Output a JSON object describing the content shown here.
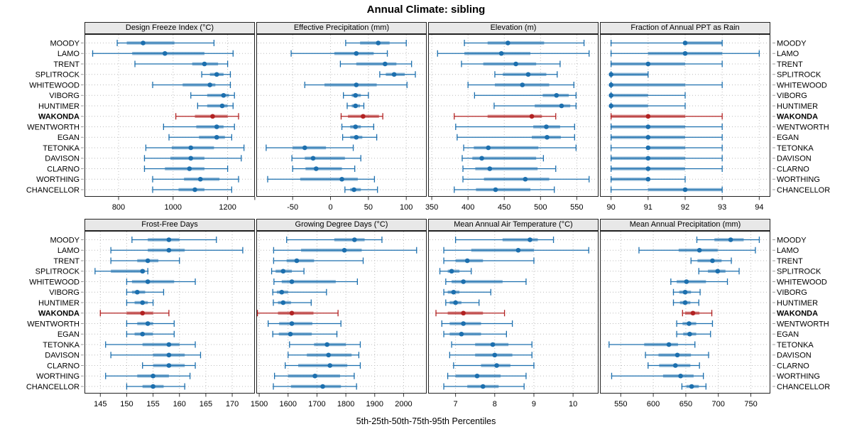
{
  "title": "Annual Climate: sibling",
  "footer": "5th-25th-50th-75th-95th Percentiles",
  "stations": [
    "MOODY",
    "LAMO",
    "TRENT",
    "SPLITROCK",
    "WHITEWOOD",
    "VIBORG",
    "HUNTIMER",
    "WAKONDA",
    "WENTWORTH",
    "EGAN",
    "TETONKA",
    "DAVISON",
    "CLARNO",
    "WORTHING",
    "CHANCELLOR"
  ],
  "highlight_station": "WAKONDA",
  "colors": {
    "series": "#1C6FAE",
    "highlight": "#B22222",
    "grid": "#bcbcbc",
    "panel_border": "#222222",
    "header_bg": "#e8e8e8",
    "tick": "#333333",
    "text": "#000000"
  },
  "chart_data": {
    "type": "dotplot",
    "layout": {
      "rows": 2,
      "cols": 4
    },
    "percentiles": [
      5,
      25,
      50,
      75,
      95
    ],
    "panels": [
      {
        "title": "Design Freeze Index (°C)",
        "xlim": [
          675,
          1300
        ],
        "ticks": [
          800,
          1000,
          1200
        ],
        "minor_ticks": [],
        "values": [
          [
            795,
            830,
            890,
            1005,
            1150
          ],
          [
            705,
            850,
            970,
            1115,
            1220
          ],
          [
            860,
            1070,
            1115,
            1165,
            1200
          ],
          [
            1105,
            1135,
            1160,
            1185,
            1210
          ],
          [
            925,
            1035,
            1135,
            1155,
            1210
          ],
          [
            1065,
            1125,
            1185,
            1205,
            1225
          ],
          [
            1090,
            1125,
            1180,
            1200,
            1220
          ],
          [
            1010,
            1080,
            1145,
            1200,
            1240
          ],
          [
            965,
            1085,
            1160,
            1185,
            1225
          ],
          [
            985,
            1095,
            1160,
            1190,
            1215
          ],
          [
            900,
            995,
            1065,
            1150,
            1260
          ],
          [
            895,
            990,
            1065,
            1115,
            1250
          ],
          [
            895,
            970,
            1060,
            1115,
            1200
          ],
          [
            925,
            1040,
            1100,
            1170,
            1240
          ],
          [
            925,
            1020,
            1080,
            1115,
            1215
          ]
        ]
      },
      {
        "title": "Effective Precipitation (mm)",
        "xlim": [
          -98,
          127
        ],
        "ticks": [
          -50,
          0,
          50,
          100
        ],
        "minor_ticks": [
          -100
        ],
        "values": [
          [
            20,
            39,
            63,
            78,
            100
          ],
          [
            -52,
            5,
            34,
            57,
            75
          ],
          [
            13,
            34,
            72,
            87,
            107
          ],
          [
            65,
            73,
            84,
            98,
            112
          ],
          [
            -34,
            -8,
            34,
            61,
            101
          ],
          [
            17,
            28,
            33,
            40,
            50
          ],
          [
            22,
            28,
            33,
            39,
            44
          ],
          [
            14,
            23,
            43,
            64,
            69
          ],
          [
            15,
            26,
            33,
            40,
            57
          ],
          [
            16,
            26,
            34,
            42,
            61
          ],
          [
            -85,
            -50,
            -34,
            -6,
            30
          ],
          [
            -51,
            -34,
            -23,
            19,
            40
          ],
          [
            -50,
            -33,
            -19,
            15,
            32
          ],
          [
            -83,
            -40,
            15,
            36,
            58
          ],
          [
            19,
            26,
            31,
            40,
            62
          ]
        ]
      },
      {
        "title": "Elevation (m)",
        "xlim": [
          345,
          580
        ],
        "ticks": [
          350,
          400,
          450,
          500,
          550
        ],
        "minor_ticks": [],
        "values": [
          [
            395,
            427,
            455,
            505,
            560
          ],
          [
            358,
            395,
            446,
            486,
            567
          ],
          [
            391,
            421,
            466,
            494,
            527
          ],
          [
            437,
            448,
            483,
            508,
            523
          ],
          [
            400,
            437,
            475,
            512,
            546
          ],
          [
            409,
            503,
            522,
            539,
            549
          ],
          [
            436,
            492,
            529,
            541,
            549
          ],
          [
            381,
            427,
            488,
            502,
            521
          ],
          [
            383,
            490,
            508,
            527,
            547
          ],
          [
            385,
            488,
            509,
            528,
            547
          ],
          [
            394,
            408,
            428,
            497,
            549
          ],
          [
            392,
            406,
            419,
            494,
            504
          ],
          [
            393,
            410,
            430,
            496,
            521
          ],
          [
            393,
            422,
            479,
            512,
            567
          ],
          [
            381,
            411,
            438,
            486,
            519
          ]
        ]
      },
      {
        "title": "Fraction of Annual PPT as Rain",
        "xlim": [
          89.7,
          94.3
        ],
        "ticks": [
          90,
          91,
          92,
          93,
          94
        ],
        "minor_ticks": [],
        "values": [
          [
            90,
            92,
            92,
            93,
            93
          ],
          [
            90,
            91,
            92,
            93,
            94
          ],
          [
            90,
            90,
            91,
            92,
            93
          ],
          [
            90,
            90,
            90,
            91,
            91
          ],
          [
            90,
            90,
            90,
            92,
            93
          ],
          [
            90,
            90,
            90,
            91,
            92
          ],
          [
            90,
            90,
            90,
            91,
            92
          ],
          [
            90,
            90,
            91,
            92,
            93
          ],
          [
            90,
            90,
            91,
            92,
            93
          ],
          [
            90,
            90,
            91,
            92,
            93
          ],
          [
            90,
            91,
            91,
            92,
            93
          ],
          [
            90,
            90,
            91,
            92,
            93
          ],
          [
            90,
            90,
            91,
            92,
            93
          ],
          [
            90,
            90,
            91,
            91,
            92
          ],
          [
            90,
            91,
            92,
            93,
            93
          ]
        ]
      },
      {
        "title": "Frost-Free Days",
        "xlim": [
          142,
          174.3
        ],
        "ticks": [
          145,
          150,
          155,
          160,
          165,
          170
        ],
        "minor_ticks": [],
        "values": [
          [
            151,
            154,
            158,
            160,
            167
          ],
          [
            147,
            154,
            158,
            161,
            172
          ],
          [
            147,
            152,
            154,
            156,
            160
          ],
          [
            144,
            147,
            153,
            153.5,
            154
          ],
          [
            150,
            151,
            154,
            159,
            163
          ],
          [
            150,
            151,
            152,
            153.5,
            157
          ],
          [
            150,
            151.5,
            153,
            154,
            155
          ],
          [
            145,
            150,
            153,
            155,
            158
          ],
          [
            150,
            152,
            154,
            155,
            159
          ],
          [
            150,
            151.5,
            153,
            155,
            159
          ],
          [
            146,
            153,
            158,
            160,
            163
          ],
          [
            147,
            155,
            158,
            161,
            164
          ],
          [
            153,
            155,
            158,
            161,
            163
          ],
          [
            146,
            152,
            155,
            158,
            162
          ],
          [
            150,
            153,
            155,
            157,
            161
          ]
        ]
      },
      {
        "title": "Growing Degree Days (°C)",
        "xlim": [
          1490,
          2080
        ],
        "ticks": [
          1500,
          1600,
          1700,
          1800,
          1900,
          2000
        ],
        "minor_ticks": [],
        "values": [
          [
            1595,
            1760,
            1830,
            1865,
            1925
          ],
          [
            1550,
            1645,
            1795,
            1855,
            2045
          ],
          [
            1550,
            1595,
            1630,
            1690,
            1860
          ],
          [
            1543,
            1557,
            1583,
            1613,
            1655
          ],
          [
            1551,
            1578,
            1613,
            1765,
            1840
          ],
          [
            1547,
            1561,
            1578,
            1600,
            1733
          ],
          [
            1549,
            1565,
            1583,
            1610,
            1680
          ],
          [
            1494,
            1565,
            1613,
            1688,
            1773
          ],
          [
            1531,
            1569,
            1613,
            1684,
            1783
          ],
          [
            1547,
            1568,
            1608,
            1682,
            1769
          ],
          [
            1605,
            1690,
            1735,
            1800,
            1850
          ],
          [
            1600,
            1665,
            1740,
            1820,
            1845
          ],
          [
            1590,
            1635,
            1745,
            1805,
            1850
          ],
          [
            1553,
            1600,
            1693,
            1780,
            1829
          ],
          [
            1549,
            1610,
            1720,
            1783,
            1837
          ]
        ]
      },
      {
        "title": "Mean Annual Air Temperature (°C)",
        "xlim": [
          6.3,
          10.65
        ],
        "ticks": [
          7,
          8,
          9,
          10
        ],
        "minor_ticks": [],
        "values": [
          [
            7.0,
            8.2,
            8.9,
            9.1,
            9.5
          ],
          [
            6.7,
            7.4,
            8.6,
            9.0,
            10.4
          ],
          [
            6.7,
            7.0,
            7.3,
            7.7,
            9.0
          ],
          [
            6.6,
            6.8,
            6.9,
            7.1,
            7.4
          ],
          [
            6.75,
            6.9,
            7.2,
            8.2,
            8.8
          ],
          [
            6.7,
            6.8,
            6.95,
            7.1,
            7.9
          ],
          [
            6.75,
            6.85,
            7.0,
            7.15,
            7.6
          ],
          [
            6.5,
            6.8,
            7.2,
            7.7,
            8.25
          ],
          [
            6.65,
            6.85,
            7.2,
            7.65,
            8.45
          ],
          [
            6.7,
            6.85,
            7.15,
            7.65,
            8.3
          ],
          [
            6.9,
            7.5,
            7.95,
            8.35,
            8.95
          ],
          [
            6.85,
            7.5,
            8.0,
            8.45,
            8.95
          ],
          [
            6.95,
            7.65,
            8.05,
            8.4,
            9.0
          ],
          [
            6.8,
            7.0,
            7.55,
            8.15,
            8.8
          ],
          [
            6.7,
            7.3,
            7.7,
            8.1,
            8.75
          ]
        ]
      },
      {
        "title": "Mean Annual Precipitation (mm)",
        "xlim": [
          518,
          780
        ],
        "ticks": [
          550,
          600,
          650,
          700,
          750
        ],
        "minor_ticks": [],
        "values": [
          [
            667,
            694,
            719,
            739,
            763
          ],
          [
            578,
            639,
            671,
            699,
            757
          ],
          [
            658,
            668,
            691,
            705,
            720
          ],
          [
            670,
            684,
            699,
            711,
            732
          ],
          [
            627,
            636,
            651,
            681,
            714
          ],
          [
            631,
            640,
            649,
            658,
            672
          ],
          [
            631,
            641,
            649,
            657,
            670
          ],
          [
            645,
            649,
            661,
            671,
            690
          ],
          [
            636,
            645,
            655,
            666,
            691
          ],
          [
            636,
            646,
            656,
            666,
            688
          ],
          [
            532,
            586,
            624,
            638,
            664
          ],
          [
            588,
            608,
            637,
            658,
            685
          ],
          [
            592,
            609,
            634,
            657,
            671
          ],
          [
            536,
            615,
            642,
            662,
            677
          ],
          [
            644,
            651,
            659,
            670,
            681
          ]
        ]
      }
    ]
  }
}
